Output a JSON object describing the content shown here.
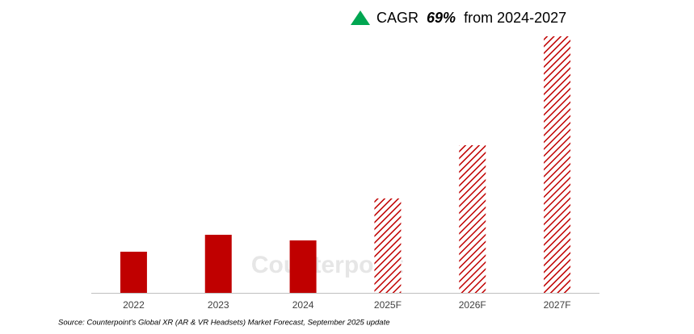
{
  "chart_data": {
    "type": "bar",
    "title": {
      "prefix": "CAGR",
      "highlight": "69%",
      "suffix": "from 2024-2027"
    },
    "categories": [
      "2022",
      "2023",
      "2024",
      "2025F",
      "2026F",
      "2027F"
    ],
    "values": [
      51,
      72,
      65,
      117,
      183,
      318
    ],
    "styles": [
      "solid",
      "solid",
      "solid",
      "hatched",
      "hatched",
      "hatched"
    ],
    "color": "#c00000",
    "watermark": "Counterpoint",
    "source": "Source: Counterpoint's Global XR (AR & VR Headsets) Market Forecast, September 2025 update"
  }
}
